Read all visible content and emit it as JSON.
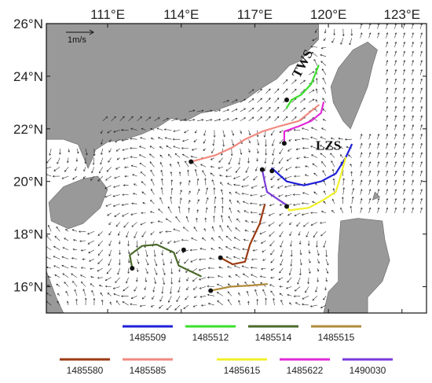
{
  "chart_data": {
    "type": "map",
    "title": "",
    "xlabel": "",
    "ylabel": "",
    "xlim": [
      108.5,
      124.0
    ],
    "ylim": [
      15.0,
      26.0
    ],
    "xticks": [
      111,
      114,
      117,
      120,
      123
    ],
    "yticks": [
      16,
      18,
      20,
      22,
      24,
      26
    ],
    "xtick_labels": [
      "111°E",
      "114°E",
      "117°E",
      "120°E",
      "123°E"
    ],
    "ytick_labels": [
      "16°N",
      "18°N",
      "20°N",
      "22°N",
      "24°N",
      "26°N"
    ],
    "scale_label": "1m/s",
    "strait_labels": [
      {
        "text": "TWS",
        "lon": 119.1,
        "lat": 24.4
      },
      {
        "text": "LZS",
        "lon": 120.0,
        "lat": 21.2
      }
    ],
    "colors": {
      "land": "#999999",
      "sea": "#ffffff",
      "arrows": "#222222"
    },
    "series": [
      {
        "name": "1485509",
        "color": "#1f1fd8",
        "points": [
          [
            117.7,
            20.5
          ],
          [
            118.3,
            20.0
          ],
          [
            119.0,
            19.85
          ],
          [
            119.7,
            20.0
          ],
          [
            120.3,
            20.3
          ],
          [
            120.7,
            20.9
          ],
          [
            120.95,
            21.4
          ]
        ]
      },
      {
        "name": "1485512",
        "color": "#3adf2a",
        "points": [
          [
            118.3,
            22.8
          ],
          [
            118.5,
            23.1
          ],
          [
            118.9,
            23.3
          ],
          [
            119.3,
            23.7
          ],
          [
            119.6,
            24.4
          ]
        ]
      },
      {
        "name": "1485514",
        "color": "#4b6a2a",
        "points": [
          [
            112.0,
            16.7
          ],
          [
            111.9,
            17.2
          ],
          [
            112.4,
            17.55
          ],
          [
            113.0,
            17.6
          ],
          [
            113.7,
            17.3
          ],
          [
            113.9,
            16.8
          ],
          [
            114.8,
            16.4
          ]
        ]
      },
      {
        "name": "1485515",
        "color": "#b08a3a",
        "points": [
          [
            115.2,
            15.85
          ],
          [
            116.0,
            16.0
          ],
          [
            116.9,
            16.05
          ],
          [
            117.5,
            16.1
          ]
        ]
      },
      {
        "name": "1485580",
        "color": "#9b3a12",
        "points": [
          [
            115.6,
            17.1
          ],
          [
            116.1,
            16.85
          ],
          [
            116.6,
            16.95
          ],
          [
            116.8,
            17.6
          ],
          [
            117.2,
            18.4
          ],
          [
            117.4,
            19.1
          ]
        ]
      },
      {
        "name": "1485585",
        "color": "#f08a80",
        "points": [
          [
            114.4,
            20.75
          ],
          [
            115.4,
            21.0
          ],
          [
            116.1,
            21.3
          ],
          [
            116.6,
            21.6
          ],
          [
            117.3,
            21.9
          ],
          [
            118.0,
            22.1
          ],
          [
            118.8,
            22.3
          ],
          [
            119.6,
            22.9
          ]
        ]
      },
      {
        "name": "1485615",
        "color": "#f0f02a",
        "points": [
          [
            118.3,
            19.1
          ],
          [
            118.4,
            18.9
          ],
          [
            119.2,
            19.0
          ],
          [
            119.8,
            19.3
          ],
          [
            120.3,
            19.6
          ],
          [
            120.5,
            20.2
          ],
          [
            120.7,
            20.9
          ]
        ]
      },
      {
        "name": "1485622",
        "color": "#e02ad8",
        "points": [
          [
            118.2,
            21.45
          ],
          [
            118.2,
            21.9
          ],
          [
            118.8,
            22.1
          ],
          [
            119.3,
            22.3
          ],
          [
            119.7,
            22.6
          ],
          [
            119.8,
            23.0
          ]
        ]
      },
      {
        "name": "1490030",
        "color": "#7a3ad8",
        "points": [
          [
            117.3,
            20.45
          ],
          [
            117.4,
            20.0
          ],
          [
            117.5,
            19.6
          ],
          [
            117.9,
            19.35
          ],
          [
            118.3,
            19.1
          ]
        ]
      }
    ],
    "start_points": [
      [
        118.3,
        23.1
      ],
      [
        118.2,
        21.45
      ],
      [
        114.4,
        20.75
      ],
      [
        117.3,
        20.45
      ],
      [
        117.7,
        20.4
      ],
      [
        118.3,
        19.05
      ],
      [
        114.1,
        17.4
      ],
      [
        112.0,
        16.7
      ],
      [
        115.6,
        17.1
      ],
      [
        115.2,
        15.85
      ]
    ],
    "legend": {
      "placement": "bottom",
      "rows": [
        [
          "1485509",
          "1485512",
          "1485514",
          "1485515"
        ],
        [
          "1485580",
          "1485585",
          "1485615",
          "1485622",
          "1490030"
        ]
      ]
    }
  }
}
